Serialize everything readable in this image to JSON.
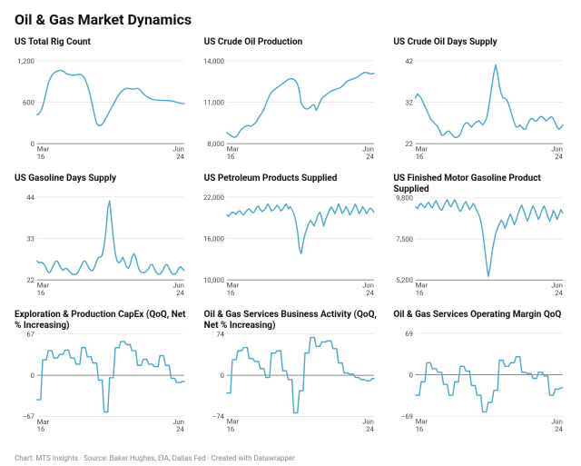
{
  "title": "Oil & Gas Market Dynamics",
  "footer": "Chart: MTS Insights · Source: Baker Hughes, EIA, Dallas Fed · Created with Datawrapper",
  "style": {
    "series_color": "#4aa8c7",
    "grid_color": "#d8d8d8",
    "baseline_color": "#666666",
    "tick_color": "#444444",
    "title_fontsize": 16,
    "subplot_title_fontsize": 10,
    "tick_fontsize": 9,
    "footer_fontsize": 8,
    "line_width": 1.4,
    "background": "#ffffff"
  },
  "x_axis": {
    "start_label": "Mar",
    "end_label": "Jun",
    "start_sub": "16",
    "end_sub": "24",
    "n": 80
  },
  "charts": [
    {
      "title": "US Total Rig Count",
      "yticks": [
        0,
        600,
        1200
      ],
      "ylim": [
        0,
        1200
      ],
      "data": [
        420,
        430,
        470,
        540,
        640,
        760,
        870,
        940,
        990,
        1020,
        1040,
        1050,
        1060,
        1060,
        1050,
        1030,
        1010,
        1000,
        995,
        993,
        993,
        995,
        1000,
        1005,
        995,
        970,
        920,
        850,
        760,
        650,
        520,
        400,
        290,
        260,
        260,
        280,
        320,
        370,
        420,
        470,
        520,
        570,
        620,
        670,
        710,
        745,
        770,
        790,
        800,
        800,
        795,
        790,
        790,
        795,
        800,
        785,
        755,
        725,
        700,
        680,
        665,
        650,
        640,
        635,
        630,
        628,
        627,
        626,
        625,
        625,
        624,
        623,
        620,
        615,
        608,
        600,
        592,
        585,
        580,
        578
      ]
    },
    {
      "title": "US Crude Oil Production",
      "yticks": [
        8000,
        11000,
        14000
      ],
      "ylim": [
        8000,
        14000
      ],
      "data": [
        8800,
        8700,
        8600,
        8500,
        8450,
        8500,
        8650,
        8900,
        9050,
        9150,
        9250,
        9300,
        9300,
        9250,
        9350,
        9450,
        9600,
        9850,
        10050,
        10250,
        10500,
        10850,
        11200,
        11500,
        11700,
        11850,
        11950,
        12050,
        12150,
        12250,
        12350,
        12450,
        12550,
        12650,
        12700,
        12700,
        12650,
        12550,
        12300,
        11800,
        10900,
        10700,
        10550,
        10500,
        10550,
        10650,
        10800,
        10800,
        10400,
        10650,
        11000,
        11250,
        11400,
        11500,
        11600,
        11700,
        11800,
        11850,
        11900,
        11950,
        12000,
        12050,
        12150,
        12300,
        12450,
        12550,
        12600,
        12650,
        12700,
        12750,
        12800,
        12900,
        13000,
        13100,
        13150,
        13150,
        13100,
        13050,
        13050,
        13100
      ]
    },
    {
      "title": "US Crude Oil Days Supply",
      "yticks": [
        22,
        32,
        42
      ],
      "ylim": [
        22,
        42
      ],
      "data": [
        33,
        34,
        33.5,
        33,
        32,
        31,
        30,
        29,
        28,
        27.5,
        27,
        26.5,
        26,
        25,
        24,
        24,
        24.5,
        25,
        25,
        24.5,
        24,
        23.5,
        23.5,
        23.7,
        24.2,
        25.5,
        26.5,
        27,
        27,
        26.5,
        26,
        26.5,
        27,
        27.3,
        27.5,
        27,
        26.5,
        27,
        28,
        30,
        33,
        36,
        39,
        41,
        39,
        36,
        34,
        33,
        33,
        32.5,
        31.5,
        30,
        28.5,
        27,
        26,
        26,
        26.5,
        26,
        25.5,
        25.5,
        26.5,
        27.5,
        28,
        28,
        27.5,
        27.5,
        28,
        28.5,
        28.5,
        28,
        27.5,
        27.8,
        28.2,
        28.5,
        28,
        27,
        26,
        25.5,
        25.8,
        26.5
      ]
    },
    {
      "title": "US Gasoline Days Supply",
      "yticks": [
        22,
        33,
        44
      ],
      "ylim": [
        22,
        44
      ],
      "data": [
        27,
        26.5,
        26.7,
        26.5,
        26,
        25,
        24,
        24,
        25,
        26,
        27,
        27,
        26,
        25,
        24.5,
        25,
        25,
        24.5,
        24,
        23.5,
        23.5,
        23.5,
        24,
        25,
        26,
        27,
        27,
        26,
        25,
        24.5,
        24.5,
        25.5,
        27,
        28,
        28,
        28.5,
        31,
        35,
        41,
        43,
        38,
        33,
        29,
        27,
        26.5,
        27,
        28,
        27,
        25.5,
        25,
        26,
        28,
        29,
        28,
        26,
        24.5,
        24,
        24,
        24,
        24.5,
        25,
        26,
        26,
        25,
        24,
        23.5,
        23.5,
        24,
        25,
        26,
        26,
        25,
        24,
        23.5,
        23.5,
        24,
        25,
        25.5,
        25,
        24.5
      ]
    },
    {
      "title": "US Petroleum Products Supplied",
      "yticks": [
        10000,
        16000,
        22000
      ],
      "ylim": [
        10000,
        22000
      ],
      "data": [
        19400,
        19200,
        19600,
        19800,
        19700,
        19500,
        19900,
        20000,
        19600,
        19400,
        19800,
        20100,
        20300,
        20000,
        19700,
        19900,
        20500,
        20700,
        20200,
        19900,
        20100,
        20400,
        21000,
        20600,
        20000,
        20100,
        20400,
        20800,
        20500,
        20000,
        20200,
        20700,
        21000,
        20300,
        20600,
        20200,
        19600,
        18600,
        17000,
        14600,
        13800,
        15400,
        16600,
        17400,
        18200,
        18600,
        18200,
        17800,
        18600,
        19400,
        19800,
        19000,
        17800,
        18600,
        19400,
        20000,
        20600,
        20200,
        19600,
        20200,
        21000,
        20400,
        19600,
        20000,
        20600,
        20200,
        19400,
        19800,
        20400,
        21000,
        20400,
        19600,
        20000,
        20600,
        20200,
        19600,
        20000,
        20400,
        20200,
        19800
      ]
    },
    {
      "title": "US Finished Motor Gasoline Product Supplied",
      "yticks": [
        5200,
        7500,
        9800
      ],
      "ylim": [
        5200,
        9800
      ],
      "data": [
        9300,
        9200,
        9400,
        9500,
        9350,
        9250,
        9450,
        9550,
        9350,
        9250,
        9500,
        9650,
        9400,
        9200,
        9100,
        9300,
        9550,
        9700,
        9450,
        9300,
        9500,
        9700,
        9500,
        9200,
        9050,
        9200,
        9450,
        9600,
        9350,
        9150,
        9300,
        9500,
        9300,
        9050,
        8850,
        8500,
        7900,
        7100,
        6200,
        5400,
        5900,
        6700,
        7300,
        7800,
        8100,
        8350,
        8550,
        8400,
        8100,
        8350,
        8700,
        8900,
        8600,
        8300,
        8550,
        8900,
        9200,
        9400,
        9100,
        8800,
        8500,
        8750,
        9100,
        9350,
        9150,
        8850,
        8600,
        8850,
        9150,
        9350,
        9100,
        8750,
        8500,
        8750,
        9100,
        8900,
        8600,
        8850,
        9150,
        8950
      ]
    },
    {
      "title": "Exploration & Production CapEx (QoQ, Net % Increasing)",
      "yticks": [
        -67,
        0,
        67
      ],
      "ylim": [
        -67,
        67
      ],
      "data": [
        -40,
        -40,
        -40,
        25,
        25,
        25,
        40,
        40,
        40,
        28,
        28,
        28,
        34,
        34,
        34,
        41,
        41,
        41,
        28,
        28,
        28,
        18,
        18,
        18,
        45,
        45,
        45,
        30,
        30,
        30,
        20,
        20,
        20,
        -8,
        -8,
        -8,
        -60,
        -60,
        -60,
        -4,
        -4,
        -4,
        45,
        45,
        45,
        55,
        55,
        55,
        50,
        50,
        50,
        40,
        40,
        40,
        16,
        16,
        16,
        26,
        26,
        26,
        18,
        18,
        18,
        14,
        14,
        14,
        32,
        32,
        32,
        16,
        16,
        16,
        -5,
        -5,
        -5,
        -12,
        -12,
        -12,
        -10,
        -10
      ]
    },
    {
      "title": "Oil & Gas Services Business Activity (QoQ, Net % Increasing)",
      "yticks": [
        -74,
        0,
        74
      ],
      "ylim": [
        -74,
        74
      ],
      "data": [
        -32,
        -32,
        -32,
        28,
        28,
        28,
        44,
        44,
        44,
        50,
        50,
        50,
        30,
        30,
        30,
        25,
        25,
        25,
        12,
        12,
        12,
        -4,
        -4,
        -4,
        40,
        40,
        40,
        44,
        44,
        44,
        8,
        8,
        8,
        -8,
        -8,
        -8,
        -68,
        -68,
        -68,
        -28,
        -28,
        -28,
        40,
        40,
        40,
        68,
        68,
        68,
        52,
        52,
        52,
        60,
        60,
        60,
        62,
        62,
        62,
        48,
        48,
        48,
        22,
        22,
        22,
        4,
        4,
        4,
        2,
        2,
        2,
        -4,
        -4,
        -4,
        -8,
        -8,
        -8,
        -10,
        -10,
        -10,
        -6,
        -6
      ]
    },
    {
      "title": "Oil & Gas Services Operating Margin QoQ",
      "yticks": [
        -69,
        0,
        69
      ],
      "ylim": [
        -69,
        69
      ],
      "data": [
        -34,
        -34,
        -34,
        -12,
        -12,
        -12,
        20,
        20,
        20,
        10,
        10,
        10,
        4,
        4,
        4,
        -16,
        -16,
        -16,
        -34,
        -34,
        -34,
        -12,
        -12,
        -12,
        14,
        14,
        14,
        6,
        6,
        6,
        -18,
        -18,
        -18,
        -34,
        -34,
        -34,
        -62,
        -62,
        -62,
        -46,
        -46,
        -46,
        -26,
        -26,
        -26,
        24,
        24,
        24,
        14,
        14,
        14,
        20,
        20,
        20,
        30,
        30,
        30,
        4,
        4,
        4,
        2,
        2,
        2,
        -6,
        -6,
        -6,
        4,
        4,
        4,
        -2,
        -2,
        -2,
        -34,
        -34,
        -34,
        -24,
        -24,
        -24,
        -22,
        -22
      ]
    }
  ]
}
